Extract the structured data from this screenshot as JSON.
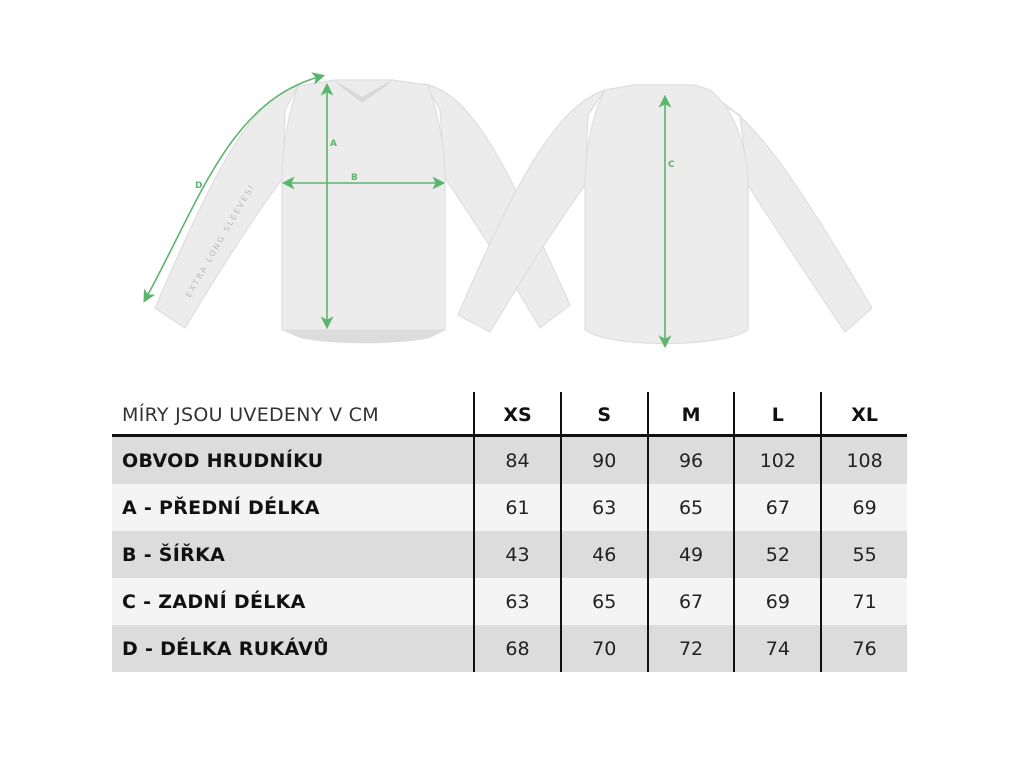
{
  "illustration": {
    "sleeve_text": "EXTRA LONG SLEEVES!",
    "labels": {
      "a": "A",
      "b": "B",
      "c": "C",
      "d": "D"
    },
    "accent_color": "#5cb56e",
    "garment_color": "#ececec"
  },
  "table": {
    "header_label": "MÍRY JSOU UVEDENY V CM",
    "sizes": [
      "XS",
      "S",
      "M",
      "L",
      "XL"
    ],
    "rows": [
      {
        "label": "OBVOD HRUDNÍKU",
        "values": [
          "84",
          "90",
          "96",
          "102",
          "108"
        ]
      },
      {
        "label": "A - PŘEDNÍ DÉLKA",
        "values": [
          "61",
          "63",
          "65",
          "67",
          "69"
        ]
      },
      {
        "label": "B - ŠÍŘKA",
        "values": [
          "43",
          "46",
          "49",
          "52",
          "55"
        ]
      },
      {
        "label": "C - ZADNÍ DÉLKA",
        "values": [
          "63",
          "65",
          "67",
          "69",
          "71"
        ]
      },
      {
        "label": "D - DÉLKA RUKÁVŮ",
        "values": [
          "68",
          "70",
          "72",
          "74",
          "76"
        ]
      }
    ]
  }
}
